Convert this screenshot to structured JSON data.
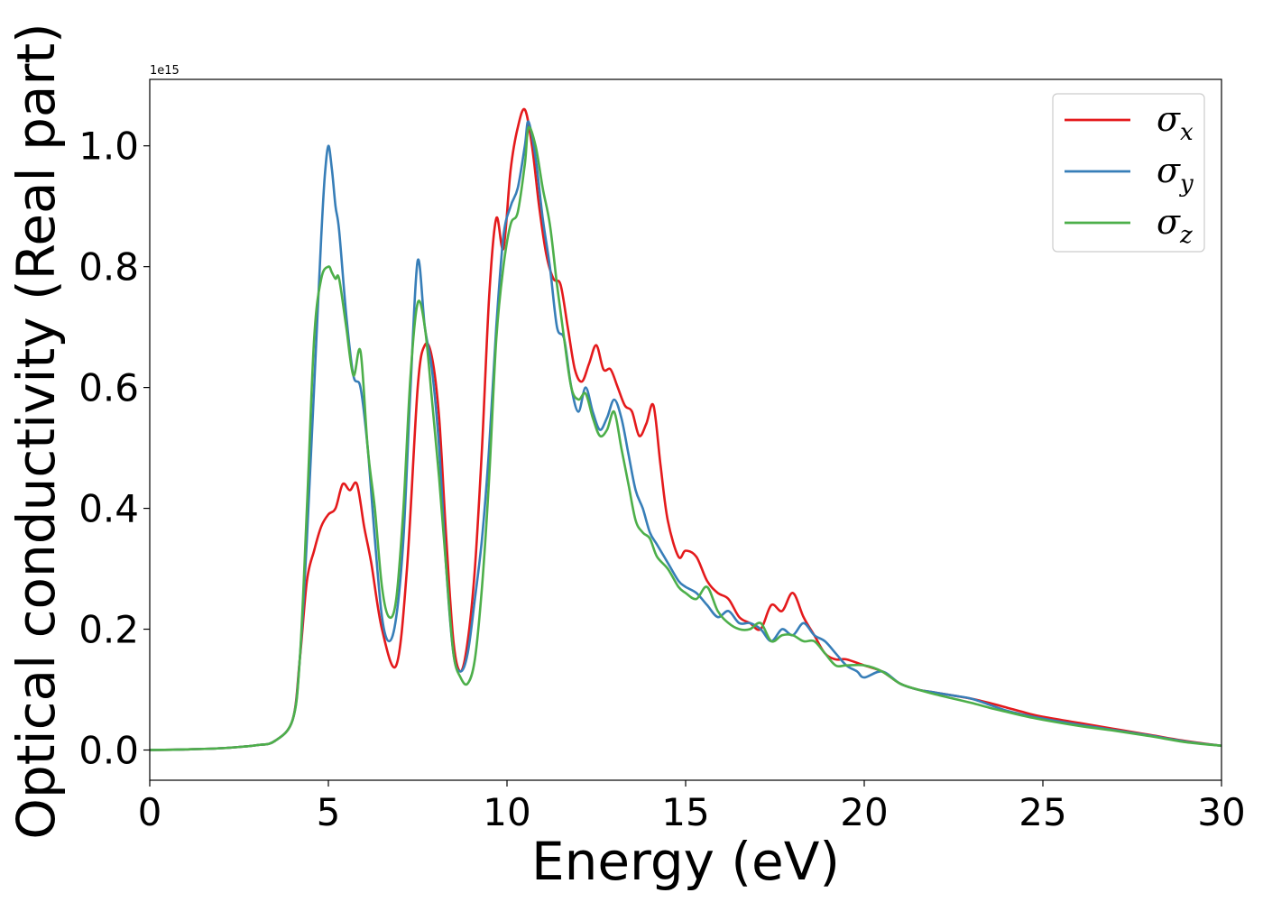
{
  "chart_data": {
    "type": "line",
    "xlabel": "Energy (eV)",
    "ylabel": "Optical conductivity (Real part)",
    "y_offset_label": "1e15",
    "xlim": [
      0,
      30
    ],
    "ylim": [
      -0.05,
      1.11
    ],
    "x_ticks": [
      "0",
      "5",
      "10",
      "15",
      "20",
      "25",
      "30"
    ],
    "y_ticks": [
      "0.0",
      "0.2",
      "0.4",
      "0.6",
      "0.8",
      "1.0"
    ],
    "grid": false,
    "legend_position": "top-right",
    "series": [
      {
        "name": "σx",
        "symbol": "σ",
        "subscript": "x",
        "color": "#e41a1c",
        "x": [
          0,
          1,
          2,
          3,
          3.5,
          4,
          4.2,
          4.4,
          4.6,
          4.8,
          5.0,
          5.2,
          5.4,
          5.6,
          5.8,
          6.0,
          6.2,
          6.5,
          6.9,
          7.2,
          7.5,
          7.7,
          7.9,
          8.1,
          8.3,
          8.5,
          8.7,
          8.9,
          9.1,
          9.3,
          9.5,
          9.7,
          9.9,
          10.1,
          10.3,
          10.5,
          10.7,
          10.9,
          11.1,
          11.3,
          11.5,
          11.7,
          11.9,
          12.1,
          12.3,
          12.5,
          12.7,
          12.9,
          13.1,
          13.3,
          13.5,
          13.7,
          13.9,
          14.1,
          14.3,
          14.5,
          14.8,
          15.0,
          15.3,
          15.6,
          15.9,
          16.2,
          16.5,
          16.8,
          17.1,
          17.4,
          17.7,
          18.0,
          18.3,
          18.6,
          18.9,
          19.2,
          19.5,
          20.0,
          20.5,
          21.0,
          21.5,
          22.0,
          22.5,
          23.0,
          23.5,
          24.0,
          24.5,
          25.0,
          26.0,
          27.0,
          28.0,
          29.0,
          30.0
        ],
        "values": [
          0,
          0.001,
          0.003,
          0.008,
          0.015,
          0.05,
          0.15,
          0.28,
          0.33,
          0.37,
          0.39,
          0.4,
          0.44,
          0.43,
          0.44,
          0.37,
          0.31,
          0.2,
          0.14,
          0.3,
          0.6,
          0.67,
          0.65,
          0.55,
          0.35,
          0.18,
          0.13,
          0.18,
          0.3,
          0.5,
          0.75,
          0.88,
          0.83,
          0.96,
          1.03,
          1.06,
          1.0,
          0.9,
          0.82,
          0.78,
          0.77,
          0.7,
          0.63,
          0.61,
          0.64,
          0.67,
          0.63,
          0.63,
          0.6,
          0.57,
          0.56,
          0.52,
          0.54,
          0.57,
          0.47,
          0.38,
          0.32,
          0.33,
          0.32,
          0.28,
          0.26,
          0.25,
          0.22,
          0.21,
          0.2,
          0.24,
          0.23,
          0.26,
          0.22,
          0.19,
          0.16,
          0.15,
          0.15,
          0.14,
          0.13,
          0.11,
          0.1,
          0.095,
          0.09,
          0.085,
          0.078,
          0.07,
          0.062,
          0.055,
          0.045,
          0.035,
          0.025,
          0.015,
          0.007
        ]
      },
      {
        "name": "σy",
        "symbol": "σ",
        "subscript": "y",
        "color": "#377eb8",
        "x": [
          0,
          1,
          2,
          3,
          3.5,
          4,
          4.2,
          4.4,
          4.6,
          4.8,
          4.9,
          5.0,
          5.1,
          5.2,
          5.3,
          5.5,
          5.7,
          5.9,
          6.1,
          6.3,
          6.5,
          6.7,
          6.9,
          7.1,
          7.3,
          7.5,
          7.7,
          7.9,
          8.1,
          8.3,
          8.5,
          8.7,
          8.9,
          9.1,
          9.3,
          9.5,
          9.7,
          9.9,
          10.1,
          10.3,
          10.5,
          10.6,
          10.8,
          11.0,
          11.2,
          11.4,
          11.6,
          11.8,
          12.0,
          12.2,
          12.4,
          12.6,
          12.8,
          13.0,
          13.2,
          13.4,
          13.6,
          13.8,
          14.0,
          14.2,
          14.5,
          14.8,
          15.0,
          15.3,
          15.6,
          15.9,
          16.2,
          16.5,
          16.8,
          17.1,
          17.4,
          17.7,
          18.0,
          18.3,
          18.6,
          18.9,
          19.2,
          19.5,
          19.8,
          20.0,
          20.5,
          21.0,
          21.5,
          22.0,
          22.5,
          23.0,
          23.5,
          24.0,
          24.5,
          25.0,
          26.0,
          27.0,
          28.0,
          29.0,
          30.0
        ],
        "values": [
          0,
          0.001,
          0.003,
          0.008,
          0.015,
          0.05,
          0.15,
          0.35,
          0.6,
          0.85,
          0.95,
          1.0,
          0.96,
          0.9,
          0.86,
          0.72,
          0.62,
          0.6,
          0.5,
          0.35,
          0.22,
          0.18,
          0.22,
          0.35,
          0.6,
          0.81,
          0.7,
          0.63,
          0.5,
          0.3,
          0.16,
          0.13,
          0.16,
          0.25,
          0.35,
          0.5,
          0.7,
          0.85,
          0.9,
          0.93,
          1.0,
          1.04,
          0.98,
          0.88,
          0.8,
          0.7,
          0.68,
          0.6,
          0.56,
          0.6,
          0.56,
          0.53,
          0.55,
          0.58,
          0.55,
          0.49,
          0.43,
          0.4,
          0.36,
          0.34,
          0.31,
          0.28,
          0.27,
          0.26,
          0.24,
          0.22,
          0.23,
          0.21,
          0.21,
          0.2,
          0.18,
          0.2,
          0.19,
          0.21,
          0.19,
          0.18,
          0.16,
          0.14,
          0.13,
          0.12,
          0.13,
          0.11,
          0.1,
          0.095,
          0.09,
          0.085,
          0.075,
          0.065,
          0.058,
          0.052,
          0.042,
          0.033,
          0.024,
          0.014,
          0.007
        ]
      },
      {
        "name": "σz",
        "symbol": "σ",
        "subscript": "z",
        "color": "#4daf4a",
        "x": [
          0,
          1,
          2,
          3,
          3.5,
          4,
          4.2,
          4.4,
          4.6,
          4.8,
          5.0,
          5.1,
          5.2,
          5.3,
          5.5,
          5.7,
          5.9,
          6.1,
          6.3,
          6.5,
          6.7,
          6.9,
          7.1,
          7.3,
          7.5,
          7.7,
          7.9,
          8.1,
          8.3,
          8.5,
          8.7,
          8.9,
          9.1,
          9.3,
          9.5,
          9.7,
          9.9,
          10.1,
          10.3,
          10.5,
          10.6,
          10.8,
          11.0,
          11.2,
          11.4,
          11.6,
          11.8,
          12.0,
          12.2,
          12.4,
          12.6,
          12.8,
          13.0,
          13.2,
          13.4,
          13.6,
          13.8,
          14.0,
          14.2,
          14.5,
          14.8,
          15.0,
          15.3,
          15.6,
          15.9,
          16.2,
          16.5,
          16.8,
          17.1,
          17.4,
          17.7,
          18.0,
          18.3,
          18.6,
          18.9,
          19.2,
          19.5,
          20.0,
          20.5,
          21.0,
          21.5,
          22.0,
          22.5,
          23.0,
          23.5,
          24.0,
          24.5,
          25.0,
          26.0,
          27.0,
          28.0,
          29.0,
          30.0
        ],
        "values": [
          0,
          0.001,
          0.003,
          0.008,
          0.015,
          0.05,
          0.15,
          0.4,
          0.68,
          0.78,
          0.8,
          0.79,
          0.78,
          0.78,
          0.7,
          0.62,
          0.66,
          0.5,
          0.4,
          0.27,
          0.22,
          0.25,
          0.4,
          0.62,
          0.74,
          0.7,
          0.58,
          0.45,
          0.3,
          0.16,
          0.12,
          0.11,
          0.15,
          0.27,
          0.45,
          0.68,
          0.8,
          0.87,
          0.89,
          0.97,
          1.03,
          1.0,
          0.93,
          0.87,
          0.77,
          0.68,
          0.6,
          0.58,
          0.59,
          0.55,
          0.52,
          0.53,
          0.56,
          0.5,
          0.44,
          0.38,
          0.36,
          0.35,
          0.32,
          0.3,
          0.27,
          0.26,
          0.25,
          0.27,
          0.23,
          0.21,
          0.2,
          0.2,
          0.21,
          0.18,
          0.19,
          0.19,
          0.18,
          0.18,
          0.16,
          0.14,
          0.14,
          0.14,
          0.13,
          0.11,
          0.1,
          0.092,
          0.085,
          0.078,
          0.07,
          0.063,
          0.056,
          0.05,
          0.04,
          0.032,
          0.023,
          0.013,
          0.007
        ]
      }
    ]
  }
}
